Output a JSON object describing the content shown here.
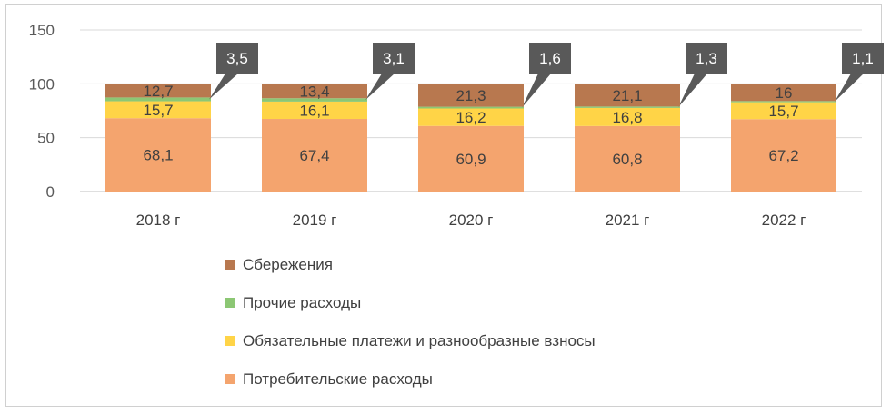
{
  "chart_data": {
    "type": "bar",
    "stacked": true,
    "categories": [
      "2018 г",
      "2019 г",
      "2020 г",
      "2021 г",
      "2022 г"
    ],
    "series": [
      {
        "name": "Потребительские расходы",
        "color": "#F4A46E",
        "values": [
          68.1,
          67.4,
          60.9,
          60.8,
          67.2
        ],
        "labels": [
          "68,1",
          "67,4",
          "60,9",
          "60,8",
          "67,2"
        ]
      },
      {
        "name": "Обязательные платежи и разнообразные взносы",
        "color": "#FFD447",
        "values": [
          15.7,
          16.1,
          16.2,
          16.8,
          15.7
        ],
        "labels": [
          "15,7",
          "16,1",
          "16,2",
          "16,8",
          "15,7"
        ]
      },
      {
        "name": "Прочие расходы",
        "color": "#8CC774",
        "values": [
          3.5,
          3.1,
          1.6,
          1.3,
          1.1
        ],
        "labels": [
          "3,5",
          "3,1",
          "1,6",
          "1,3",
          "1,1"
        ]
      },
      {
        "name": "Сбережения",
        "color": "#B8784F",
        "values": [
          12.7,
          13.4,
          21.3,
          21.1,
          16
        ],
        "labels": [
          "12,7",
          "13,4",
          "21,3",
          "21,1",
          "16"
        ]
      }
    ],
    "yticks": [
      "0",
      "50",
      "100",
      "150"
    ],
    "ylim": [
      0,
      150
    ],
    "grid": true,
    "legend": "bottom",
    "callout_color": "#595959"
  }
}
